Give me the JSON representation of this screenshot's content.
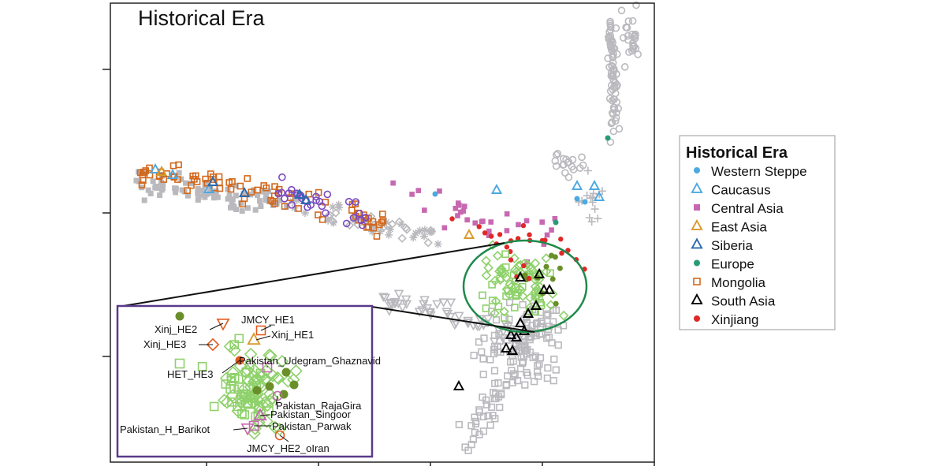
{
  "chart_data": {
    "type": "scatter",
    "title": "Historical Era",
    "legend": {
      "title": "Historical Era",
      "placement": "right",
      "entries": [
        {
          "name": "Western Steppe",
          "color": "#4da9e0",
          "marker": "circle-filled"
        },
        {
          "name": "Caucasus",
          "color": "#4da9e0",
          "marker": "triangle-open"
        },
        {
          "name": "Central Asia",
          "color": "#c768b0",
          "marker": "square-filled"
        },
        {
          "name": "East Asia",
          "color": "#d99a2a",
          "marker": "triangle-open"
        },
        {
          "name": "Siberia",
          "color": "#2a6bb0",
          "marker": "triangle-open"
        },
        {
          "name": "Europe",
          "color": "#2a9a78",
          "marker": "circle-filled"
        },
        {
          "name": "Mongolia",
          "color": "#d2691e",
          "marker": "square-open"
        },
        {
          "name": "South Asia",
          "color": "#000000",
          "marker": "triangle-open"
        },
        {
          "name": "Xinjiang",
          "color": "#e02828",
          "marker": "circle-filled"
        }
      ]
    },
    "inset_labels": [
      "JMCY_HE1",
      "Xinj_HE2",
      "Xinj_HE1",
      "Xinj_HE3",
      "Pakistan_Udegram_Ghaznavid",
      "HET_HE3",
      "Pakistan_RajaGira",
      "Pakistan_Singoor",
      "Pakistan_Parwak",
      "Pakistan_H_Barikot",
      "JMCY_HE2_oIran"
    ],
    "grid": false,
    "highlight": "green ellipse around South Asia cluster, magnified in inset"
  }
}
